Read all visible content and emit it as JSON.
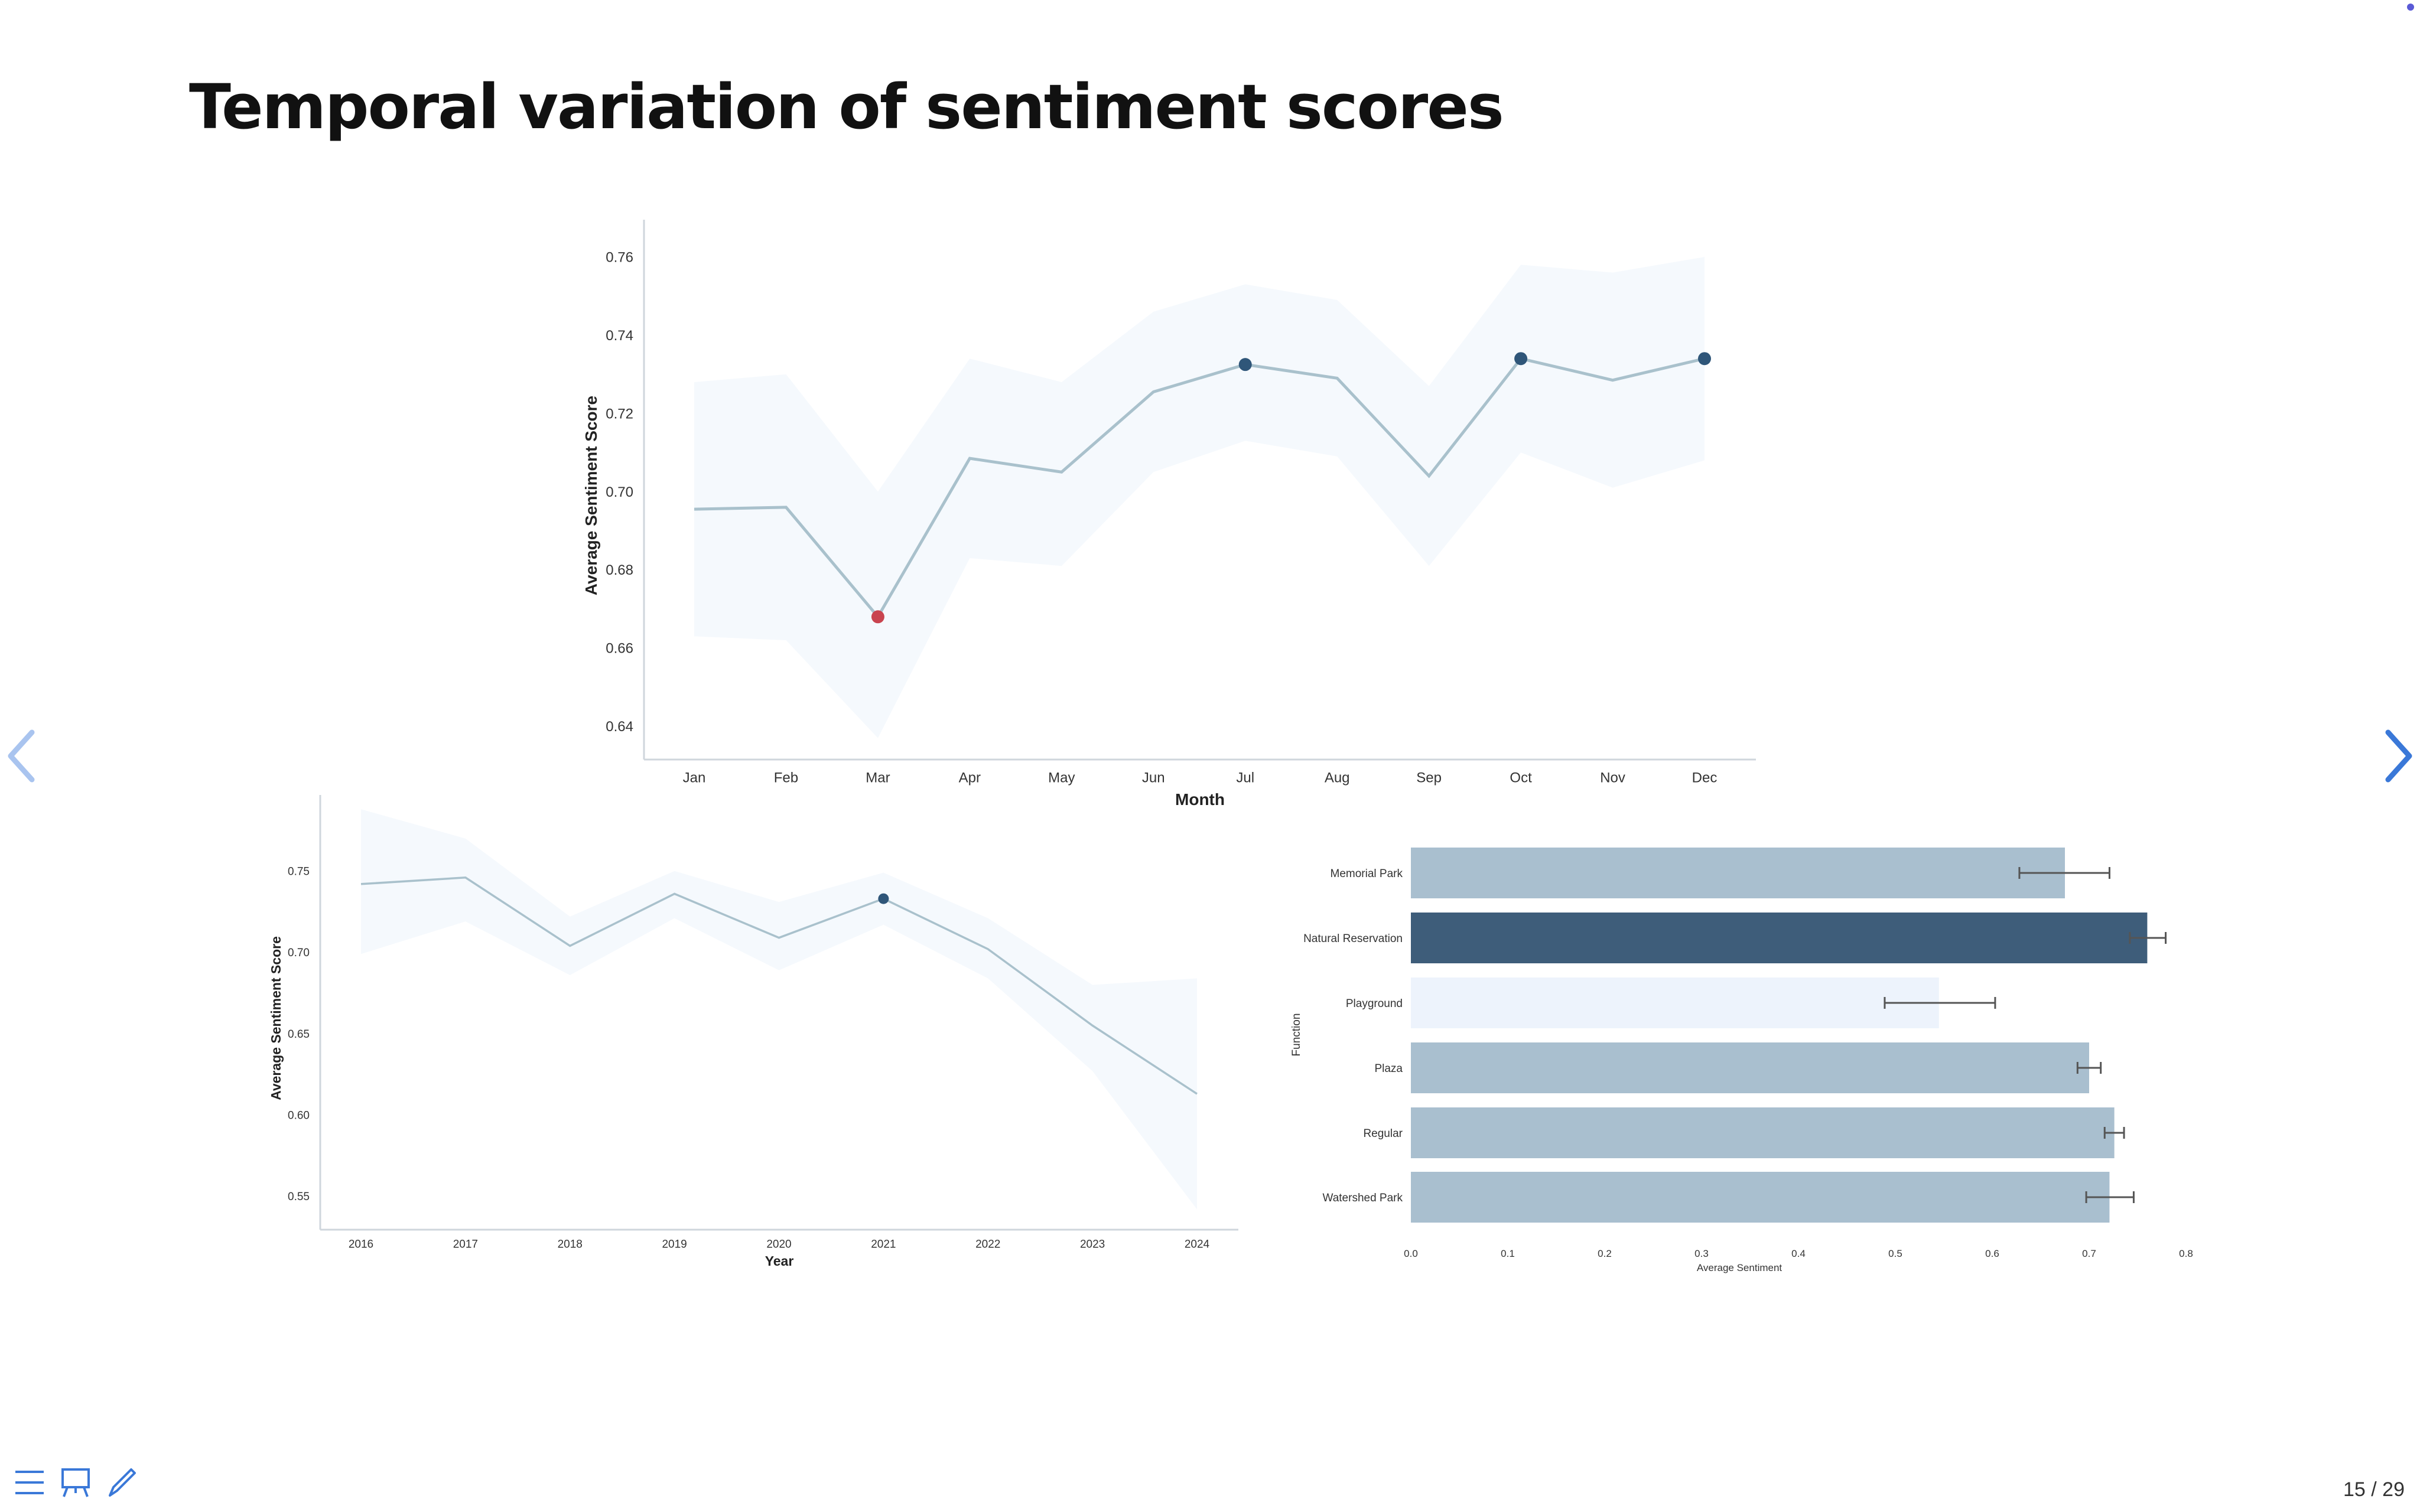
{
  "slide": {
    "title": "Temporal variation of sentiment scores",
    "number_label": "15 / 29"
  },
  "toolbar": {
    "items": [
      {
        "icon": "menu-icon"
      },
      {
        "icon": "slides-overview-icon"
      },
      {
        "icon": "pen-icon"
      }
    ]
  },
  "colors": {
    "line": "#a9c1cc",
    "band": "#f5f9fd",
    "highlight": "#2f5679",
    "low": "#c9444f",
    "nav": "#3a78d8",
    "bar_default": "#a9bfcf",
    "bar_highlight": "#3e5d7a",
    "bar_low": "#edf3fc",
    "error": "#555555"
  },
  "chart_data": [
    {
      "type": "line",
      "ylabel": "Average Sentiment Score",
      "xlabel": "Month",
      "categories": [
        "Jan",
        "Feb",
        "Mar",
        "Apr",
        "May",
        "Jun",
        "Jul",
        "Aug",
        "Sep",
        "Oct",
        "Nov",
        "Dec"
      ],
      "values": [
        0.6955,
        0.696,
        0.668,
        0.7085,
        0.705,
        0.7255,
        0.7325,
        0.729,
        0.704,
        0.734,
        0.7285,
        0.734
      ],
      "band_upper": [
        0.728,
        0.73,
        0.7,
        0.734,
        0.728,
        0.746,
        0.753,
        0.749,
        0.727,
        0.758,
        0.756,
        0.76
      ],
      "band_lower": [
        0.663,
        0.662,
        0.637,
        0.683,
        0.681,
        0.705,
        0.713,
        0.709,
        0.681,
        0.71,
        0.701,
        0.708
      ],
      "highlighted": [
        2,
        6,
        9,
        11
      ],
      "low_point": 2,
      "ylim": [
        0.6315,
        0.7665
      ],
      "yticks": [
        "0.64",
        "0.66",
        "0.68",
        "0.70",
        "0.72",
        "0.74",
        "0.76"
      ],
      "ytick_values": [
        0.64,
        0.66,
        0.68,
        0.7,
        0.72,
        0.74,
        0.76
      ]
    },
    {
      "type": "line",
      "ylabel": "Average Sentiment Score",
      "xlabel": "Year",
      "categories": [
        "2016",
        "2017",
        "2018",
        "2019",
        "2020",
        "2021",
        "2022",
        "2023",
        "2024"
      ],
      "values": [
        0.742,
        0.746,
        0.704,
        0.736,
        0.709,
        0.733,
        0.702,
        0.655,
        0.613
      ],
      "band_upper": [
        0.788,
        0.77,
        0.722,
        0.75,
        0.731,
        0.749,
        0.721,
        0.68,
        0.684
      ],
      "band_lower": [
        0.699,
        0.719,
        0.686,
        0.721,
        0.689,
        0.717,
        0.684,
        0.627,
        0.542
      ],
      "highlighted": [
        5
      ],
      "ylim": [
        0.5295,
        0.7895
      ],
      "yticks": [
        "0.55",
        "0.60",
        "0.65",
        "0.70",
        "0.75"
      ],
      "ytick_values": [
        0.55,
        0.6,
        0.65,
        0.7,
        0.75
      ]
    },
    {
      "type": "bar",
      "orientation": "horizontal",
      "ylabel": "Function",
      "xlabel": "Average Sentiment",
      "categories": [
        "Memorial Park",
        "Natural Reservation",
        "Playground",
        "Plaza",
        "Regular",
        "Watershed Park"
      ],
      "values": [
        0.675,
        0.76,
        0.545,
        0.7,
        0.726,
        0.721
      ],
      "error_low": [
        0.628,
        0.742,
        0.489,
        0.688,
        0.716,
        0.697
      ],
      "error_high": [
        0.721,
        0.779,
        0.603,
        0.712,
        0.736,
        0.746
      ],
      "highlighted": 1,
      "lowest": 2,
      "xlim": [
        0,
        0.8
      ],
      "xticks": [
        "0.0",
        "0.1",
        "0.2",
        "0.3",
        "0.4",
        "0.5",
        "0.6",
        "0.7",
        "0.8"
      ],
      "xtick_values": [
        0.0,
        0.1,
        0.2,
        0.3,
        0.4,
        0.5,
        0.6,
        0.7,
        0.8
      ]
    }
  ]
}
